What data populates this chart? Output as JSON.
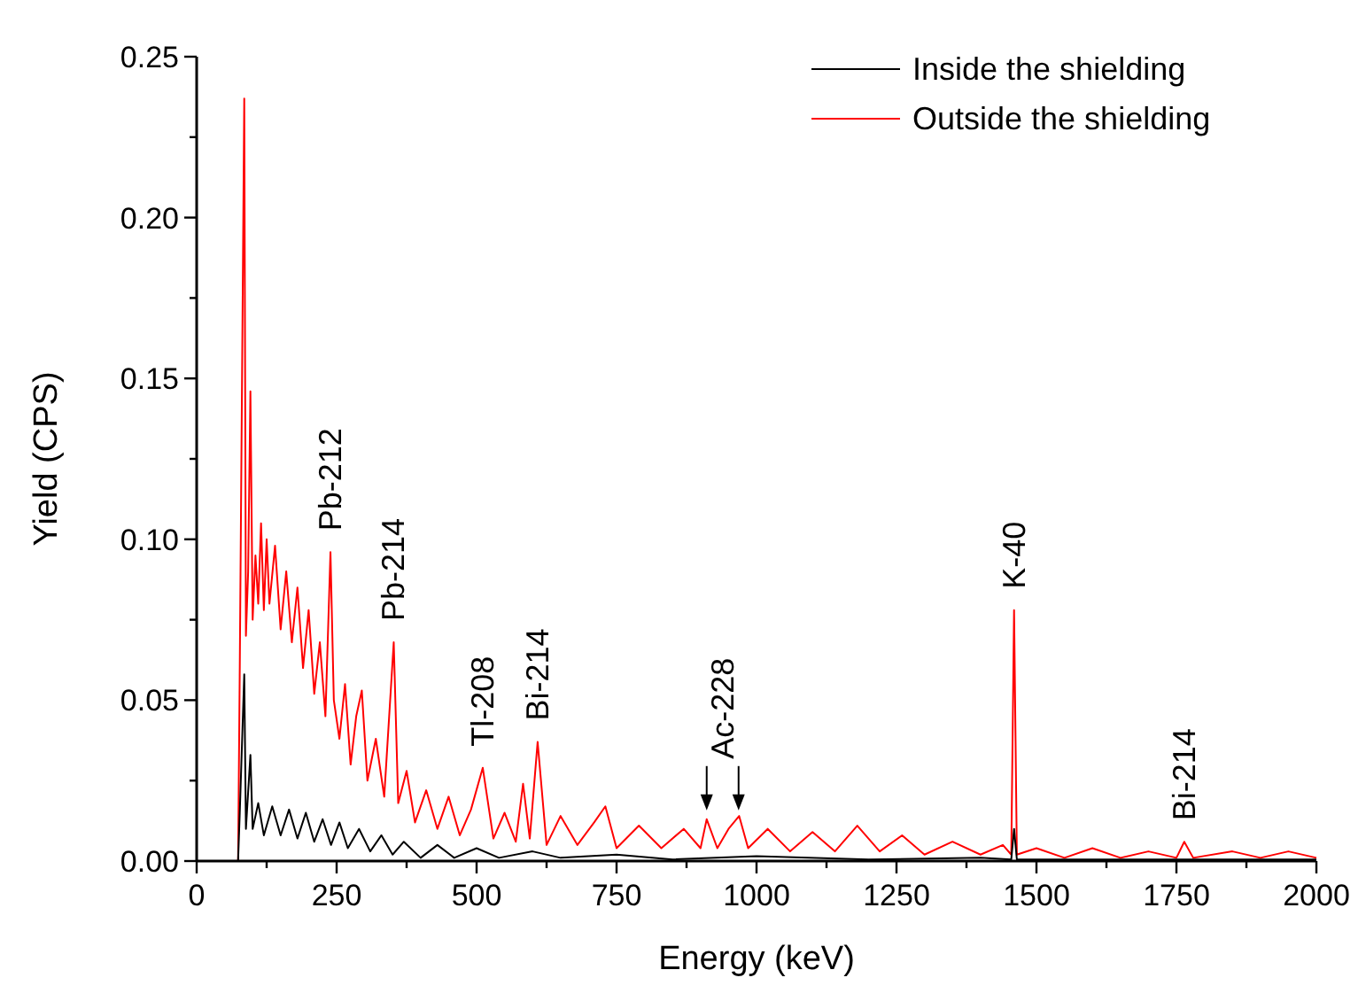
{
  "chart_data": {
    "type": "line",
    "xlabel": "Energy (keV)",
    "ylabel": "Yield (CPS)",
    "xlim": [
      0,
      2000
    ],
    "ylim": [
      0,
      0.25
    ],
    "xticks": [
      0,
      {
        "value": 125,
        "label": null
      },
      250,
      {
        "value": 375,
        "label": null
      },
      500,
      {
        "value": 625,
        "label": null
      },
      750,
      {
        "value": 875,
        "label": null
      },
      1000,
      {
        "value": 1125,
        "label": null
      },
      1250,
      {
        "value": 1375,
        "label": null
      },
      1500,
      {
        "value": 1625,
        "label": null
      },
      1750,
      {
        "value": 1875,
        "label": null
      },
      2000
    ],
    "yticks": [
      {
        "value": 0,
        "label": "0.00"
      },
      {
        "value": 0.025,
        "label": null
      },
      {
        "value": 0.05,
        "label": "0.05"
      },
      {
        "value": 0.075,
        "label": null
      },
      {
        "value": 0.1,
        "label": "0.10"
      },
      {
        "value": 0.125,
        "label": null
      },
      {
        "value": 0.15,
        "label": "0.15"
      },
      {
        "value": 0.175,
        "label": null
      },
      {
        "value": 0.2,
        "label": "0.20"
      },
      {
        "value": 0.225,
        "label": null
      },
      {
        "value": 0.25,
        "label": "0.25"
      }
    ],
    "grid": false,
    "legend": "top right",
    "line_style": "solid",
    "marker": "none",
    "series": [
      {
        "name": "Inside the shielding",
        "color": "#000000",
        "x": [
          0,
          74,
          77,
          85,
          88,
          96,
          100,
          110,
          120,
          135,
          150,
          165,
          180,
          195,
          210,
          225,
          240,
          255,
          270,
          290,
          310,
          330,
          350,
          370,
          400,
          430,
          460,
          500,
          540,
          600,
          650,
          750,
          850,
          1000,
          1200,
          1400,
          1455,
          1460,
          1465,
          1700,
          2000
        ],
        "values": [
          0,
          0,
          0.015,
          0.058,
          0.01,
          0.033,
          0.01,
          0.018,
          0.008,
          0.017,
          0.008,
          0.016,
          0.007,
          0.015,
          0.006,
          0.013,
          0.005,
          0.012,
          0.004,
          0.01,
          0.003,
          0.008,
          0.002,
          0.006,
          0.001,
          0.005,
          0.001,
          0.004,
          0.001,
          0.003,
          0.001,
          0.002,
          0.0005,
          0.0015,
          0.0005,
          0.001,
          0.0005,
          0.01,
          0.0005,
          0.0005,
          0.0005
        ]
      },
      {
        "name": "Outside the shielding",
        "color": "#ff0000",
        "x": [
          0,
          74,
          77,
          85,
          88,
          92,
          96,
          100,
          105,
          110,
          115,
          120,
          125,
          130,
          140,
          150,
          160,
          170,
          180,
          190,
          200,
          210,
          220,
          230,
          239,
          245,
          255,
          265,
          275,
          285,
          295,
          305,
          320,
          335,
          352,
          360,
          375,
          390,
          410,
          430,
          450,
          470,
          490,
          511,
          530,
          550,
          570,
          583,
          595,
          609,
          625,
          650,
          680,
          710,
          730,
          750,
          790,
          830,
          870,
          900,
          911,
          930,
          950,
          969,
          985,
          1020,
          1060,
          1100,
          1140,
          1180,
          1220,
          1260,
          1300,
          1350,
          1400,
          1440,
          1455,
          1460,
          1465,
          1500,
          1550,
          1600,
          1650,
          1700,
          1750,
          1764,
          1780,
          1850,
          1900,
          1950,
          2000
        ],
        "values": [
          0,
          0,
          0.06,
          0.237,
          0.07,
          0.09,
          0.146,
          0.075,
          0.095,
          0.08,
          0.105,
          0.078,
          0.1,
          0.08,
          0.098,
          0.072,
          0.09,
          0.068,
          0.085,
          0.06,
          0.078,
          0.052,
          0.068,
          0.045,
          0.096,
          0.05,
          0.038,
          0.055,
          0.03,
          0.045,
          0.053,
          0.025,
          0.038,
          0.02,
          0.068,
          0.018,
          0.028,
          0.012,
          0.022,
          0.01,
          0.02,
          0.008,
          0.016,
          0.029,
          0.007,
          0.015,
          0.006,
          0.024,
          0.007,
          0.037,
          0.005,
          0.014,
          0.005,
          0.012,
          0.017,
          0.004,
          0.011,
          0.004,
          0.01,
          0.004,
          0.013,
          0.004,
          0.01,
          0.014,
          0.004,
          0.01,
          0.003,
          0.009,
          0.003,
          0.011,
          0.003,
          0.008,
          0.002,
          0.006,
          0.002,
          0.005,
          0.002,
          0.078,
          0.002,
          0.004,
          0.001,
          0.004,
          0.001,
          0.003,
          0.001,
          0.006,
          0.001,
          0.003,
          0.001,
          0.003,
          0.001
        ]
      }
    ],
    "annotations": [
      {
        "text": "Pb-212",
        "x": 239,
        "y": 0.096
      },
      {
        "text": "Pb-214",
        "x": 352,
        "y": 0.068
      },
      {
        "text": "Tl-208",
        "x": 511,
        "y": 0.029
      },
      {
        "text": "Bi-214",
        "x": 609,
        "y": 0.037
      },
      {
        "text": "K-40",
        "x": 1460,
        "y": 0.078
      },
      {
        "text": "Bi-214",
        "x": 1764,
        "y": 0.006
      },
      {
        "text": "Ac-228",
        "x": 911,
        "y": 0.013
      }
    ]
  }
}
